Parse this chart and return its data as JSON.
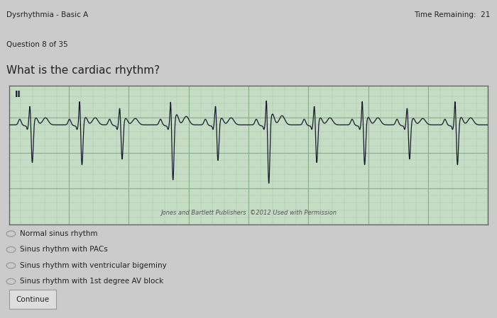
{
  "title_left": "Dysrhythmia - Basic A",
  "title_right": "Time Remaining:  21",
  "question_number": "Question 8 of 35",
  "question_text": "What is the cardiac rhythm?",
  "options": [
    "Normal sinus rhythm",
    "Sinus rhythm with PACs",
    "Sinus rhythm with ventricular bigeminy",
    "Sinus rhythm with 1st degree AV block"
  ],
  "button_text": "Continue",
  "ecg_label": "II",
  "ecg_watermark": "Jones and Bartlett Publishers  ©2012 Used with Permission",
  "bg_color": "#cbcbcb",
  "ecg_bg_color": "#c5ddc5",
  "ecg_grid_minor_color": "#adc8ad",
  "ecg_grid_major_color": "#8aae8a",
  "ecg_line_color": "#1a1a2e",
  "text_color": "#222222",
  "option_circle_color": "#999999"
}
